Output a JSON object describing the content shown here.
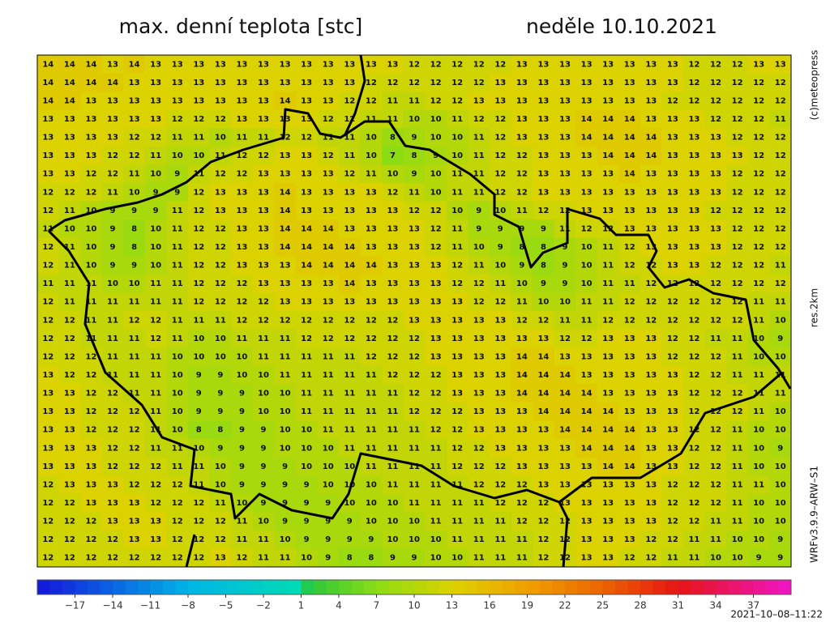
{
  "header": {
    "title": "max. denní teplota [stc]",
    "date": "neděle 10.10.2021"
  },
  "side_labels": {
    "copyright": "(c)meteopress",
    "resolution": "res.2km",
    "model": "WRFv3.9.9–ARW–S1"
  },
  "footer": {
    "timestamp": "2021–10–08–11:22"
  },
  "colorbar": {
    "range": [
      -20,
      40
    ],
    "ticks": [
      {
        "value": -17,
        "label": "−17"
      },
      {
        "value": -14,
        "label": "−14"
      },
      {
        "value": -11,
        "label": "−11"
      },
      {
        "value": -8,
        "label": "−8"
      },
      {
        "value": -5,
        "label": "−5"
      },
      {
        "value": -2,
        "label": "−2"
      },
      1,
      4,
      7,
      10,
      13,
      16,
      19,
      22,
      25,
      28,
      31,
      34,
      37
    ]
  },
  "grid": {
    "rows": [
      [
        14,
        14,
        14,
        13,
        14,
        13,
        13,
        13,
        13,
        13,
        13,
        13,
        13,
        13,
        13,
        13,
        13,
        12,
        12,
        12,
        12,
        12,
        13,
        13,
        13,
        13,
        13,
        13,
        13,
        13,
        12,
        12,
        12,
        13,
        13
      ],
      [
        14,
        14,
        14,
        14,
        13,
        13,
        13,
        13,
        13,
        13,
        13,
        13,
        13,
        13,
        13,
        12,
        12,
        12,
        12,
        12,
        12,
        13,
        13,
        13,
        13,
        13,
        13,
        13,
        13,
        13,
        12,
        12,
        12,
        12,
        12
      ],
      [
        14,
        14,
        13,
        13,
        13,
        13,
        13,
        13,
        13,
        13,
        13,
        14,
        13,
        13,
        12,
        12,
        11,
        11,
        12,
        12,
        13,
        13,
        13,
        13,
        13,
        13,
        13,
        13,
        13,
        12,
        12,
        12,
        12,
        12,
        12
      ],
      [
        13,
        13,
        13,
        13,
        13,
        13,
        12,
        12,
        12,
        13,
        13,
        13,
        13,
        12,
        12,
        11,
        11,
        10,
        10,
        11,
        12,
        12,
        13,
        13,
        13,
        14,
        14,
        14,
        13,
        13,
        13,
        12,
        12,
        12,
        11
      ],
      [
        13,
        13,
        13,
        13,
        12,
        12,
        11,
        11,
        10,
        11,
        11,
        12,
        12,
        11,
        11,
        10,
        8,
        9,
        10,
        10,
        11,
        12,
        13,
        13,
        13,
        14,
        14,
        14,
        14,
        13,
        13,
        13,
        12,
        12,
        12
      ],
      [
        13,
        13,
        13,
        12,
        12,
        11,
        10,
        10,
        11,
        12,
        12,
        13,
        13,
        12,
        11,
        10,
        7,
        8,
        9,
        10,
        11,
        12,
        12,
        13,
        13,
        13,
        14,
        14,
        14,
        13,
        13,
        13,
        13,
        12,
        12
      ],
      [
        13,
        13,
        12,
        12,
        11,
        10,
        9,
        11,
        12,
        12,
        13,
        13,
        13,
        13,
        12,
        11,
        10,
        9,
        10,
        11,
        11,
        12,
        12,
        13,
        13,
        13,
        13,
        14,
        13,
        13,
        13,
        13,
        12,
        12,
        12
      ],
      [
        12,
        12,
        12,
        11,
        10,
        9,
        9,
        12,
        13,
        13,
        13,
        14,
        13,
        13,
        13,
        13,
        12,
        11,
        10,
        11,
        11,
        12,
        12,
        13,
        13,
        13,
        13,
        13,
        13,
        13,
        13,
        13,
        12,
        12,
        12
      ],
      [
        12,
        11,
        10,
        9,
        9,
        9,
        11,
        12,
        13,
        13,
        13,
        14,
        13,
        13,
        13,
        13,
        13,
        12,
        12,
        10,
        9,
        10,
        11,
        12,
        12,
        13,
        13,
        13,
        13,
        13,
        13,
        12,
        12,
        12,
        12
      ],
      [
        11,
        10,
        10,
        9,
        8,
        10,
        11,
        12,
        12,
        13,
        13,
        14,
        14,
        14,
        13,
        13,
        13,
        13,
        12,
        11,
        9,
        9,
        9,
        9,
        11,
        12,
        12,
        13,
        13,
        13,
        13,
        13,
        12,
        12,
        12
      ],
      [
        12,
        11,
        10,
        9,
        8,
        10,
        11,
        12,
        12,
        13,
        13,
        14,
        14,
        14,
        14,
        13,
        13,
        13,
        12,
        11,
        10,
        9,
        8,
        8,
        9,
        10,
        11,
        12,
        13,
        13,
        13,
        13,
        12,
        12,
        12
      ],
      [
        12,
        11,
        10,
        9,
        9,
        10,
        11,
        12,
        12,
        13,
        13,
        13,
        14,
        14,
        14,
        14,
        13,
        13,
        13,
        12,
        11,
        10,
        9,
        8,
        9,
        10,
        11,
        12,
        12,
        13,
        13,
        12,
        12,
        12,
        11
      ],
      [
        11,
        11,
        11,
        10,
        10,
        11,
        11,
        12,
        12,
        12,
        13,
        13,
        13,
        13,
        14,
        13,
        13,
        13,
        13,
        12,
        12,
        11,
        10,
        9,
        9,
        10,
        11,
        11,
        12,
        12,
        12,
        12,
        12,
        12,
        12
      ],
      [
        12,
        11,
        11,
        11,
        11,
        11,
        11,
        12,
        12,
        12,
        12,
        13,
        13,
        13,
        13,
        13,
        13,
        13,
        13,
        13,
        12,
        12,
        11,
        10,
        10,
        11,
        11,
        12,
        12,
        12,
        12,
        12,
        12,
        11,
        11
      ],
      [
        12,
        12,
        11,
        11,
        12,
        12,
        11,
        11,
        11,
        12,
        12,
        12,
        12,
        12,
        12,
        12,
        12,
        13,
        13,
        13,
        13,
        13,
        12,
        12,
        11,
        11,
        12,
        12,
        12,
        12,
        12,
        12,
        12,
        11,
        10
      ],
      [
        12,
        12,
        11,
        11,
        11,
        12,
        11,
        10,
        10,
        11,
        11,
        11,
        12,
        12,
        12,
        12,
        12,
        12,
        13,
        13,
        13,
        13,
        13,
        13,
        12,
        12,
        13,
        13,
        13,
        12,
        12,
        11,
        11,
        10,
        9
      ],
      [
        12,
        12,
        12,
        11,
        11,
        11,
        10,
        10,
        10,
        10,
        11,
        11,
        11,
        11,
        11,
        12,
        12,
        12,
        13,
        13,
        13,
        13,
        14,
        14,
        13,
        13,
        13,
        13,
        13,
        12,
        12,
        12,
        11,
        10,
        10
      ],
      [
        13,
        12,
        12,
        11,
        11,
        11,
        10,
        9,
        9,
        10,
        10,
        11,
        11,
        11,
        11,
        11,
        12,
        12,
        12,
        13,
        13,
        13,
        14,
        14,
        14,
        13,
        13,
        13,
        13,
        13,
        12,
        12,
        11,
        11,
        11
      ],
      [
        13,
        13,
        12,
        12,
        11,
        11,
        10,
        9,
        9,
        9,
        10,
        10,
        11,
        11,
        11,
        11,
        11,
        12,
        12,
        13,
        13,
        13,
        14,
        14,
        14,
        14,
        13,
        13,
        13,
        13,
        12,
        12,
        12,
        11,
        11
      ],
      [
        13,
        13,
        12,
        12,
        12,
        11,
        10,
        9,
        9,
        9,
        10,
        10,
        11,
        11,
        11,
        11,
        11,
        12,
        12,
        12,
        13,
        13,
        13,
        14,
        14,
        14,
        14,
        13,
        13,
        13,
        12,
        12,
        12,
        11,
        10
      ],
      [
        13,
        13,
        12,
        12,
        12,
        11,
        10,
        8,
        8,
        9,
        9,
        10,
        10,
        11,
        11,
        11,
        11,
        11,
        12,
        12,
        13,
        13,
        13,
        13,
        14,
        14,
        14,
        14,
        13,
        13,
        12,
        12,
        11,
        10,
        10
      ],
      [
        13,
        13,
        13,
        12,
        12,
        11,
        11,
        10,
        9,
        9,
        9,
        10,
        10,
        10,
        11,
        11,
        11,
        11,
        11,
        12,
        12,
        13,
        13,
        13,
        13,
        14,
        14,
        14,
        13,
        13,
        12,
        12,
        11,
        10,
        9
      ],
      [
        13,
        13,
        13,
        12,
        12,
        12,
        11,
        11,
        10,
        9,
        9,
        9,
        10,
        10,
        10,
        11,
        11,
        11,
        11,
        12,
        12,
        12,
        13,
        13,
        13,
        13,
        14,
        14,
        13,
        13,
        12,
        12,
        11,
        10,
        10
      ],
      [
        12,
        13,
        13,
        13,
        12,
        12,
        12,
        11,
        10,
        9,
        9,
        9,
        9,
        10,
        10,
        10,
        11,
        11,
        11,
        11,
        12,
        12,
        12,
        13,
        13,
        13,
        13,
        13,
        13,
        12,
        12,
        12,
        11,
        11,
        10
      ],
      [
        12,
        12,
        13,
        13,
        13,
        12,
        12,
        12,
        11,
        10,
        9,
        9,
        9,
        9,
        10,
        10,
        10,
        11,
        11,
        11,
        11,
        12,
        12,
        12,
        13,
        13,
        13,
        13,
        13,
        12,
        12,
        12,
        11,
        10,
        10
      ],
      [
        12,
        12,
        12,
        13,
        13,
        13,
        12,
        12,
        12,
        11,
        10,
        9,
        9,
        9,
        9,
        10,
        10,
        10,
        11,
        11,
        11,
        11,
        12,
        12,
        12,
        13,
        13,
        13,
        13,
        12,
        12,
        11,
        11,
        10,
        10
      ],
      [
        12,
        12,
        12,
        12,
        13,
        13,
        12,
        12,
        12,
        11,
        11,
        10,
        9,
        9,
        9,
        9,
        10,
        10,
        10,
        11,
        11,
        11,
        11,
        12,
        12,
        13,
        13,
        13,
        12,
        12,
        11,
        11,
        10,
        10,
        9
      ],
      [
        12,
        12,
        12,
        12,
        12,
        12,
        12,
        12,
        13,
        12,
        11,
        11,
        10,
        9,
        8,
        8,
        9,
        9,
        10,
        10,
        11,
        11,
        11,
        12,
        12,
        13,
        13,
        12,
        12,
        11,
        11,
        10,
        10,
        9,
        9
      ]
    ]
  }
}
